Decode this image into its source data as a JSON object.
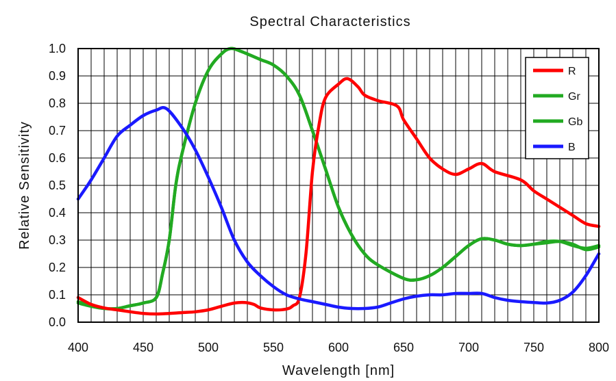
{
  "chart_data": {
    "type": "line",
    "title": "Spectral Characteristics",
    "xlabel": "Wavelength [nm]",
    "ylabel": "Relative Sensitivity",
    "xlim": [
      400,
      800
    ],
    "ylim": [
      0.0,
      1.0
    ],
    "xticks": [
      "400",
      "450",
      "500",
      "550",
      "600",
      "650",
      "700",
      "750",
      "800"
    ],
    "yticks": [
      "0.0",
      "0.1",
      "0.2",
      "0.3",
      "0.4",
      "0.5",
      "0.6",
      "0.7",
      "0.8",
      "0.9",
      "1.0"
    ],
    "x_minor_step": 10,
    "y_grid_step": 0.1,
    "legend_position": "top-right",
    "series": [
      {
        "name": "R",
        "color": "#ff0000",
        "x": [
          400,
          410,
          420,
          430,
          440,
          450,
          460,
          470,
          480,
          490,
          500,
          510,
          520,
          528,
          535,
          540,
          550,
          560,
          565,
          570,
          575,
          580,
          585,
          590,
          600,
          607,
          615,
          620,
          630,
          645,
          650,
          660,
          670,
          680,
          690,
          700,
          710,
          720,
          740,
          750,
          760,
          770,
          780,
          790,
          800
        ],
        "y": [
          0.09,
          0.065,
          0.052,
          0.045,
          0.038,
          0.032,
          0.03,
          0.032,
          0.035,
          0.038,
          0.045,
          0.058,
          0.07,
          0.072,
          0.065,
          0.052,
          0.045,
          0.048,
          0.06,
          0.09,
          0.25,
          0.55,
          0.72,
          0.82,
          0.87,
          0.89,
          0.86,
          0.83,
          0.81,
          0.79,
          0.74,
          0.67,
          0.6,
          0.56,
          0.54,
          0.56,
          0.58,
          0.55,
          0.52,
          0.48,
          0.45,
          0.42,
          0.39,
          0.36,
          0.35
        ]
      },
      {
        "name": "Gr",
        "color": "#22aa22",
        "x": [
          400,
          410,
          420,
          430,
          440,
          450,
          460,
          465,
          470,
          475,
          480,
          490,
          500,
          510,
          517,
          525,
          540,
          550,
          560,
          570,
          580,
          590,
          600,
          610,
          620,
          630,
          650,
          660,
          670,
          680,
          690,
          700,
          710,
          720,
          730,
          740,
          750,
          760,
          770,
          780,
          790,
          800
        ],
        "y": [
          0.07,
          0.058,
          0.05,
          0.05,
          0.06,
          0.07,
          0.09,
          0.18,
          0.3,
          0.5,
          0.62,
          0.8,
          0.92,
          0.98,
          1.0,
          0.99,
          0.96,
          0.94,
          0.9,
          0.83,
          0.7,
          0.56,
          0.42,
          0.32,
          0.25,
          0.21,
          0.16,
          0.155,
          0.17,
          0.2,
          0.24,
          0.28,
          0.305,
          0.3,
          0.285,
          0.28,
          0.285,
          0.29,
          0.295,
          0.285,
          0.265,
          0.275
        ]
      },
      {
        "name": "Gb",
        "color": "#22aa22",
        "x": [
          400,
          410,
          420,
          430,
          440,
          450,
          460,
          465,
          470,
          475,
          480,
          490,
          500,
          510,
          517,
          525,
          540,
          550,
          560,
          570,
          580,
          590,
          600,
          610,
          620,
          630,
          650,
          660,
          670,
          680,
          690,
          700,
          710,
          720,
          730,
          740,
          750,
          760,
          770,
          780,
          790,
          800
        ],
        "y": [
          0.075,
          0.06,
          0.05,
          0.05,
          0.06,
          0.07,
          0.09,
          0.18,
          0.3,
          0.5,
          0.62,
          0.8,
          0.92,
          0.98,
          1.0,
          0.99,
          0.96,
          0.94,
          0.9,
          0.83,
          0.7,
          0.56,
          0.42,
          0.32,
          0.25,
          0.21,
          0.16,
          0.155,
          0.17,
          0.2,
          0.24,
          0.28,
          0.305,
          0.3,
          0.285,
          0.28,
          0.285,
          0.295,
          0.295,
          0.28,
          0.27,
          0.28
        ]
      },
      {
        "name": "B",
        "color": "#1a1aff",
        "x": [
          400,
          410,
          420,
          430,
          440,
          450,
          460,
          468,
          480,
          490,
          500,
          510,
          520,
          530,
          540,
          550,
          560,
          570,
          580,
          590,
          600,
          610,
          620,
          630,
          640,
          650,
          660,
          670,
          680,
          690,
          700,
          710,
          720,
          730,
          740,
          750,
          760,
          770,
          780,
          790,
          800
        ],
        "y": [
          0.45,
          0.52,
          0.6,
          0.68,
          0.72,
          0.755,
          0.775,
          0.78,
          0.71,
          0.63,
          0.53,
          0.42,
          0.3,
          0.22,
          0.17,
          0.13,
          0.1,
          0.085,
          0.075,
          0.065,
          0.055,
          0.05,
          0.05,
          0.055,
          0.07,
          0.085,
          0.095,
          0.1,
          0.1,
          0.105,
          0.105,
          0.105,
          0.09,
          0.08,
          0.075,
          0.072,
          0.07,
          0.08,
          0.11,
          0.17,
          0.25
        ]
      }
    ]
  }
}
